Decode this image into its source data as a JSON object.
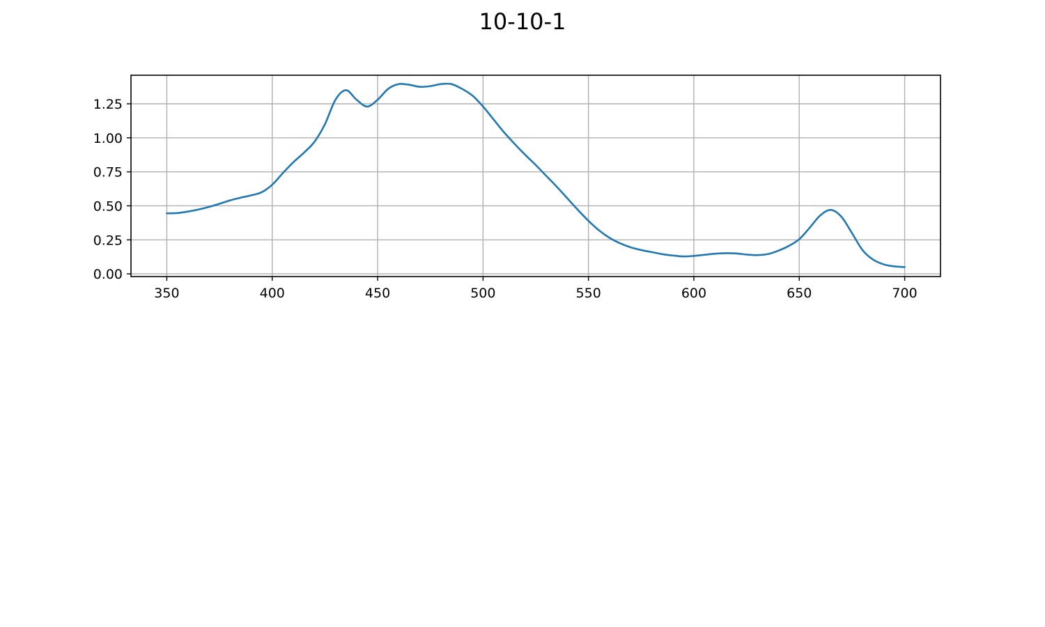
{
  "chart_data": {
    "type": "line",
    "title": "10-10-1",
    "xlabel": "",
    "ylabel": "",
    "xlim": [
      333,
      717
    ],
    "ylim": [
      -0.02,
      1.46
    ],
    "xticks": [
      350,
      400,
      450,
      500,
      550,
      600,
      650,
      700
    ],
    "xtick_labels": [
      "350",
      "400",
      "450",
      "500",
      "550",
      "600",
      "650",
      "700"
    ],
    "yticks": [
      0.0,
      0.25,
      0.5,
      0.75,
      1.0,
      1.25
    ],
    "ytick_labels": [
      "0.00",
      "0.25",
      "0.50",
      "0.75",
      "1.00",
      "1.25"
    ],
    "grid": true,
    "series": [
      {
        "color": "#1f77b4",
        "x": [
          350,
          355,
          360,
          365,
          370,
          375,
          380,
          385,
          390,
          395,
          400,
          405,
          410,
          415,
          420,
          425,
          430,
          435,
          440,
          445,
          450,
          455,
          460,
          465,
          470,
          475,
          480,
          485,
          490,
          495,
          500,
          505,
          510,
          515,
          520,
          525,
          530,
          535,
          540,
          545,
          550,
          555,
          560,
          565,
          570,
          575,
          580,
          585,
          590,
          595,
          600,
          605,
          610,
          615,
          620,
          625,
          630,
          635,
          640,
          645,
          650,
          655,
          660,
          665,
          670,
          675,
          680,
          685,
          690,
          695,
          700
        ],
        "y": [
          0.445,
          0.447,
          0.458,
          0.473,
          0.492,
          0.515,
          0.54,
          0.56,
          0.577,
          0.6,
          0.655,
          0.74,
          0.82,
          0.89,
          0.97,
          1.1,
          1.28,
          1.35,
          1.28,
          1.23,
          1.28,
          1.36,
          1.395,
          1.39,
          1.375,
          1.38,
          1.395,
          1.395,
          1.36,
          1.31,
          1.23,
          1.135,
          1.04,
          0.955,
          0.875,
          0.8,
          0.72,
          0.64,
          0.555,
          0.47,
          0.39,
          0.32,
          0.265,
          0.225,
          0.195,
          0.175,
          0.16,
          0.145,
          0.135,
          0.128,
          0.132,
          0.14,
          0.148,
          0.152,
          0.15,
          0.142,
          0.138,
          0.145,
          0.17,
          0.205,
          0.255,
          0.34,
          0.43,
          0.47,
          0.42,
          0.3,
          0.175,
          0.105,
          0.07,
          0.055,
          0.05
        ]
      }
    ]
  }
}
